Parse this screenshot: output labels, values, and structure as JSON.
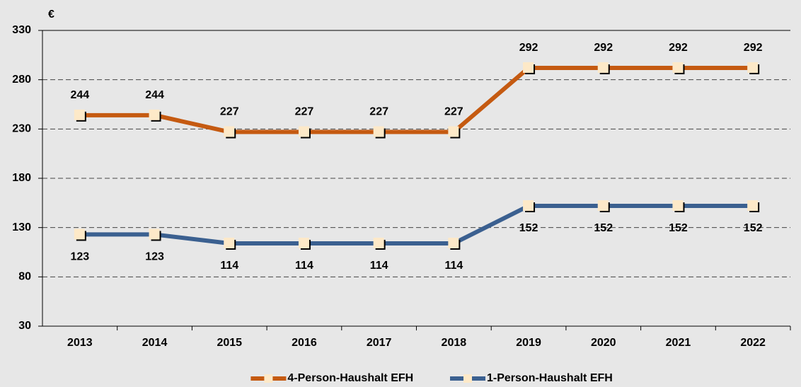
{
  "chart_data": {
    "type": "line",
    "ylabel": "€",
    "categories": [
      "2013",
      "2014",
      "2015",
      "2016",
      "2017",
      "2018",
      "2019",
      "2020",
      "2021",
      "2022"
    ],
    "series": [
      {
        "name": "4-Person-Haushalt EFH",
        "color": "#c55a11",
        "values": [
          244,
          244,
          227,
          227,
          227,
          227,
          292,
          292,
          292,
          292
        ],
        "label_position": "above"
      },
      {
        "name": "1-Person-Haushalt EFH",
        "color": "#3b6090",
        "values": [
          123,
          123,
          114,
          114,
          114,
          114,
          152,
          152,
          152,
          152
        ],
        "label_position": "below"
      }
    ],
    "marker_color": "#fde9c8",
    "ylim": [
      30,
      330
    ],
    "yticks": [
      30,
      80,
      130,
      180,
      230,
      280,
      330
    ],
    "grid": true,
    "legend": "bottom"
  }
}
